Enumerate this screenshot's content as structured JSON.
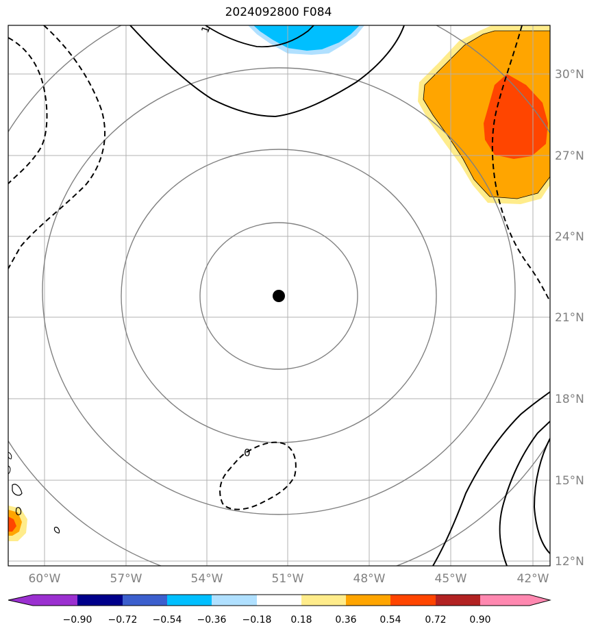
{
  "title": "2024092800 F084",
  "map": {
    "lon_labels": [
      "60°W",
      "57°W",
      "54°W",
      "51°W",
      "48°W",
      "45°W",
      "42°W"
    ],
    "lat_labels": [
      "30°N",
      "27°N",
      "24°N",
      "21°N",
      "18°N",
      "15°N",
      "12°N"
    ],
    "contour_labels": [
      "1",
      "0"
    ],
    "center_marker": {
      "lon": -51.3,
      "lat": 21.8
    }
  },
  "colorbar": {
    "tick_labels": [
      "−0.90",
      "−0.72",
      "−0.54",
      "−0.36",
      "−0.18",
      "0.18",
      "0.36",
      "0.54",
      "0.72",
      "0.90"
    ],
    "colors": [
      "#9b30d0",
      "#00008b",
      "#3c5fcd",
      "#00bfff",
      "#b0e0ff",
      "#ffffff",
      "#ffec8b",
      "#ffa500",
      "#ff4500",
      "#b22222",
      "#ff88b0"
    ]
  }
}
